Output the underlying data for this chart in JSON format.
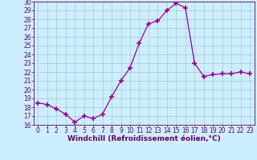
{
  "x": [
    0,
    1,
    2,
    3,
    4,
    5,
    6,
    7,
    8,
    9,
    10,
    11,
    12,
    13,
    14,
    15,
    16,
    17,
    18,
    19,
    20,
    21,
    22,
    23
  ],
  "y": [
    18.5,
    18.3,
    17.8,
    17.2,
    16.3,
    17.0,
    16.7,
    17.2,
    19.2,
    21.0,
    22.5,
    25.3,
    27.5,
    27.8,
    29.0,
    29.8,
    29.3,
    23.0,
    21.5,
    21.7,
    21.8,
    21.8,
    22.0,
    21.8
  ],
  "line_color": "#990099",
  "marker": "+",
  "marker_size": 4,
  "marker_lw": 1.2,
  "bg_color": "#cceeff",
  "grid_color": "#aacccc",
  "xlim": [
    -0.5,
    23.5
  ],
  "ylim": [
    16,
    30
  ],
  "yticks": [
    16,
    17,
    18,
    19,
    20,
    21,
    22,
    23,
    24,
    25,
    26,
    27,
    28,
    29,
    30
  ],
  "xticks": [
    0,
    1,
    2,
    3,
    4,
    5,
    6,
    7,
    8,
    9,
    10,
    11,
    12,
    13,
    14,
    15,
    16,
    17,
    18,
    19,
    20,
    21,
    22,
    23
  ],
  "xlabel": "Windchill (Refroidissement éolien,°C)",
  "xlabel_fontsize": 6.5,
  "tick_fontsize": 5.5,
  "line_width": 0.9,
  "axis_label_color": "#660066",
  "spine_color": "#660066"
}
